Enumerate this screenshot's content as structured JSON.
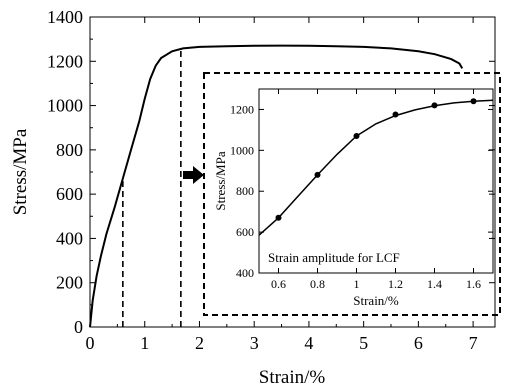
{
  "chart_data": [
    {
      "type": "line",
      "xlabel": "Strain/%",
      "ylabel": "Stress/MPa",
      "xlim": [
        0,
        7.4
      ],
      "ylim": [
        0,
        1400
      ],
      "xticks": [
        0,
        1,
        2,
        3,
        4,
        5,
        6,
        7
      ],
      "yticks": [
        0,
        200,
        400,
        600,
        800,
        1000,
        1200,
        1400
      ],
      "grid": false,
      "series": [
        {
          "x": [
            0,
            0.05,
            0.12,
            0.2,
            0.3,
            0.45,
            0.6,
            0.75,
            0.9,
            1.0,
            1.1,
            1.2,
            1.3,
            1.5,
            1.7,
            2.0,
            2.5,
            3.0,
            3.5,
            4.0,
            4.5,
            5.0,
            5.5,
            6.0,
            6.3,
            6.6,
            6.75,
            6.8
          ],
          "y": [
            0,
            120,
            230,
            320,
            420,
            540,
            670,
            800,
            930,
            1030,
            1120,
            1180,
            1215,
            1245,
            1258,
            1265,
            1268,
            1270,
            1271,
            1270,
            1268,
            1265,
            1258,
            1245,
            1232,
            1210,
            1190,
            1168
          ]
        }
      ],
      "reference_lines": [
        {
          "x": 0.6,
          "y_top": 670
        },
        {
          "x": 1.66,
          "y_top": 1252
        }
      ]
    },
    {
      "type": "scatter",
      "xlabel": "Strain/%",
      "ylabel": "Stress/MPa",
      "xlim": [
        0.5,
        1.7
      ],
      "ylim": [
        400,
        1300
      ],
      "xticks": [
        0.6,
        0.8,
        1.0,
        1.2,
        1.4,
        1.6
      ],
      "xtick_labels": [
        "0.6",
        "0.8",
        "1",
        "1.2",
        "1.4",
        "1.6"
      ],
      "yticks": [
        400,
        600,
        800,
        1000,
        1200
      ],
      "grid": false,
      "annotation": "Strain amplitude for LCF",
      "points": {
        "x": [
          0.6,
          0.8,
          1.0,
          1.2,
          1.4,
          1.6
        ],
        "y": [
          670,
          880,
          1070,
          1175,
          1220,
          1240
        ]
      },
      "fit_line": {
        "x": [
          0.5,
          0.6,
          0.7,
          0.8,
          0.9,
          1.0,
          1.1,
          1.2,
          1.3,
          1.4,
          1.5,
          1.6,
          1.7
        ],
        "y": [
          585,
          670,
          775,
          880,
          980,
          1070,
          1130,
          1170,
          1198,
          1218,
          1232,
          1240,
          1245
        ]
      }
    }
  ]
}
